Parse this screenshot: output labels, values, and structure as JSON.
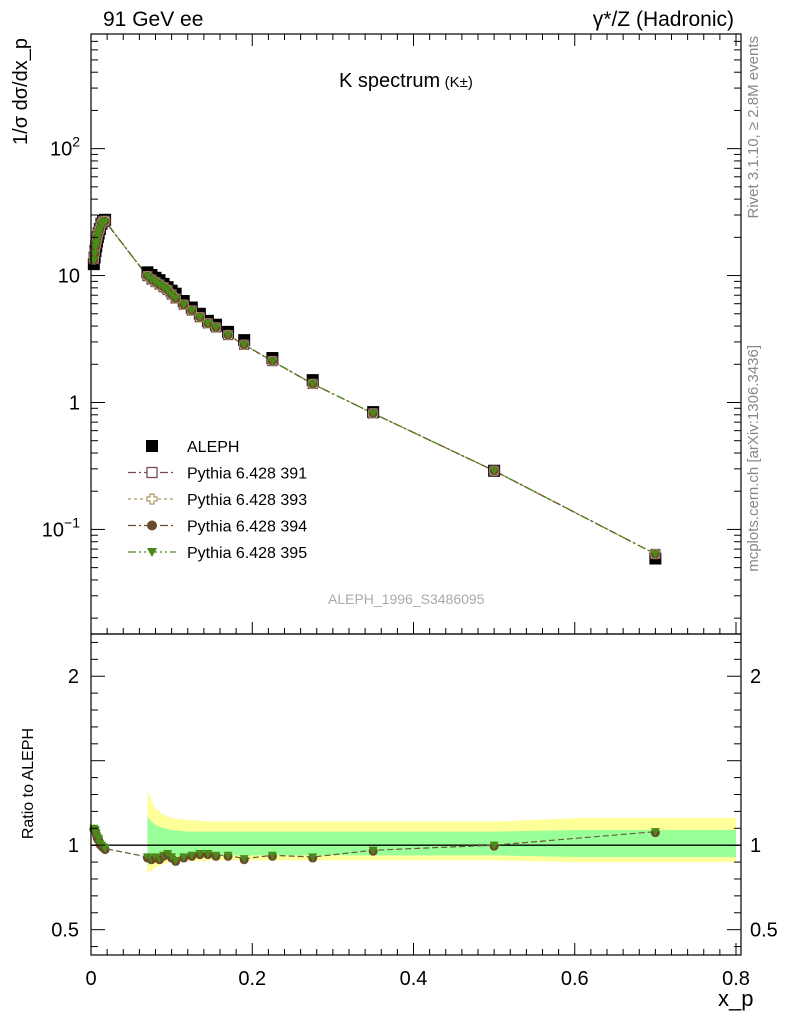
{
  "header": {
    "left": "91 GeV ee",
    "right": "γ*/Z (Hadronic)"
  },
  "side_text": {
    "top": "Rivet 3.1.10, ≥ 2.8M events",
    "bottom": "mcplots.cern.ch [arXiv:1306.3436]"
  },
  "analysis_id": "ALEPH_1996_S3486095",
  "chart_data": [
    {
      "type": "scatter",
      "title": "K spectrum",
      "title_suffix": "(K±)",
      "ylabel": "1/σ dσ/dx_p",
      "yscale": "log",
      "xlim": [
        0,
        0.8
      ],
      "ylim": [
        0.015,
        800
      ],
      "ytick_labels": [
        {
          "v": 0.1,
          "base": "10",
          "exp": "−1"
        },
        {
          "v": 1,
          "base": "1",
          "exp": ""
        },
        {
          "v": 10,
          "base": "10",
          "exp": ""
        },
        {
          "v": 100,
          "base": "10",
          "exp": "2"
        }
      ],
      "legend_position": "middle-left",
      "x": [
        0.0035,
        0.0045,
        0.0055,
        0.0065,
        0.0075,
        0.0085,
        0.0095,
        0.011,
        0.013,
        0.015,
        0.0175,
        0.07,
        0.075,
        0.08,
        0.085,
        0.09,
        0.095,
        0.1,
        0.105,
        0.115,
        0.125,
        0.135,
        0.145,
        0.155,
        0.17,
        0.19,
        0.225,
        0.275,
        0.35,
        0.5,
        0.7
      ],
      "series": [
        {
          "name": "ALEPH",
          "color": "#000000",
          "marker": "square",
          "values": [
            12.3,
            13.9,
            15.6,
            17.0,
            18.6,
            20.1,
            21.5,
            23.3,
            25.6,
            27.0,
            27.5,
            10.6,
            10.1,
            9.6,
            9.2,
            8.6,
            8.1,
            7.6,
            7.2,
            6.3,
            5.6,
            5.0,
            4.4,
            4.1,
            3.6,
            3.1,
            2.24,
            1.5,
            0.84,
            0.29,
            0.059
          ]
        },
        {
          "name": "Pythia 6.428 391",
          "color": "#7a4a5a",
          "marker": "open-square",
          "dash": "8,3,2,3",
          "values": [
            13.5,
            15.2,
            17.0,
            18.2,
            19.6,
            21.0,
            22.3,
            23.6,
            25.8,
            26.8,
            27.0,
            9.9,
            9.3,
            8.9,
            8.5,
            8.1,
            7.7,
            7.1,
            6.6,
            5.9,
            5.3,
            4.7,
            4.2,
            3.9,
            3.4,
            2.85,
            2.12,
            1.4,
            0.82,
            0.29,
            0.064
          ]
        },
        {
          "name": "Pythia 6.428 393",
          "color": "#b09a60",
          "marker": "open-cross",
          "dash": "3,3",
          "values": [
            13.4,
            15.1,
            16.9,
            18.1,
            19.5,
            20.9,
            22.2,
            23.5,
            25.7,
            26.7,
            26.9,
            9.9,
            9.3,
            8.9,
            8.5,
            8.1,
            7.7,
            7.1,
            6.6,
            5.9,
            5.3,
            4.7,
            4.2,
            3.9,
            3.4,
            2.85,
            2.12,
            1.4,
            0.82,
            0.29,
            0.064
          ]
        },
        {
          "name": "Pythia 6.428 394",
          "color": "#6b4a2a",
          "marker": "circle",
          "dash": "8,3,2,3",
          "values": [
            13.3,
            15.0,
            16.8,
            18.0,
            19.4,
            20.8,
            22.1,
            23.4,
            25.6,
            26.6,
            26.8,
            9.9,
            9.3,
            8.9,
            8.5,
            8.1,
            7.7,
            7.1,
            6.6,
            5.9,
            5.3,
            4.7,
            4.2,
            3.9,
            3.4,
            2.85,
            2.12,
            1.4,
            0.82,
            0.29,
            0.064
          ]
        },
        {
          "name": "Pythia 6.428 395",
          "color": "#4a8a1a",
          "marker": "triangle-down",
          "dash": "8,3,2,3,2,3",
          "values": [
            13.2,
            14.9,
            16.7,
            17.9,
            19.3,
            20.7,
            22.0,
            23.3,
            25.5,
            26.5,
            26.7,
            9.9,
            9.3,
            8.9,
            8.5,
            8.1,
            7.7,
            7.1,
            6.6,
            5.9,
            5.3,
            4.7,
            4.2,
            3.9,
            3.4,
            2.85,
            2.12,
            1.4,
            0.82,
            0.29,
            0.064
          ]
        }
      ]
    },
    {
      "type": "line",
      "ylabel": "Ratio to ALEPH",
      "xlabel": "x_p",
      "xlim": [
        0,
        0.8
      ],
      "ylim": [
        0.35,
        2.25
      ],
      "xticks": [
        0,
        0.2,
        0.4,
        0.6,
        0.8
      ],
      "xtick_labels": [
        "0",
        "0.2",
        "0.4",
        "0.6",
        "0.8"
      ],
      "yticks": [
        0.5,
        1,
        2
      ],
      "ytick_labels": [
        "0.5",
        "1",
        "2"
      ],
      "bands": [
        {
          "name": "stat+syst",
          "color": "#ffff99",
          "x": [
            0.07,
            0.075,
            0.08,
            0.085,
            0.09,
            0.1,
            0.12,
            0.15,
            0.2,
            0.3,
            0.4,
            0.5,
            0.6,
            0.8
          ],
          "lo": [
            0.83,
            0.85,
            0.87,
            0.88,
            0.89,
            0.9,
            0.905,
            0.91,
            0.91,
            0.91,
            0.91,
            0.91,
            0.9,
            0.9
          ],
          "hi": [
            1.32,
            1.26,
            1.22,
            1.2,
            1.18,
            1.16,
            1.15,
            1.14,
            1.14,
            1.14,
            1.14,
            1.14,
            1.16,
            1.16
          ]
        },
        {
          "name": "stat",
          "color": "#99ff99",
          "x": [
            0.07,
            0.075,
            0.08,
            0.085,
            0.09,
            0.1,
            0.12,
            0.15,
            0.2,
            0.3,
            0.4,
            0.5,
            0.6,
            0.8
          ],
          "lo": [
            0.88,
            0.9,
            0.91,
            0.92,
            0.93,
            0.935,
            0.94,
            0.94,
            0.94,
            0.94,
            0.94,
            0.94,
            0.93,
            0.93
          ],
          "hi": [
            1.17,
            1.14,
            1.12,
            1.11,
            1.1,
            1.09,
            1.08,
            1.08,
            1.08,
            1.08,
            1.08,
            1.08,
            1.09,
            1.09
          ]
        }
      ],
      "ratio": [
        1.1,
        1.09,
        1.09,
        1.07,
        1.05,
        1.04,
        1.04,
        1.01,
        1.0,
        0.99,
        0.98,
        0.93,
        0.92,
        0.93,
        0.92,
        0.94,
        0.95,
        0.93,
        0.91,
        0.93,
        0.94,
        0.95,
        0.95,
        0.94,
        0.94,
        0.92,
        0.94,
        0.93,
        0.97,
        1.0,
        1.08
      ]
    }
  ]
}
